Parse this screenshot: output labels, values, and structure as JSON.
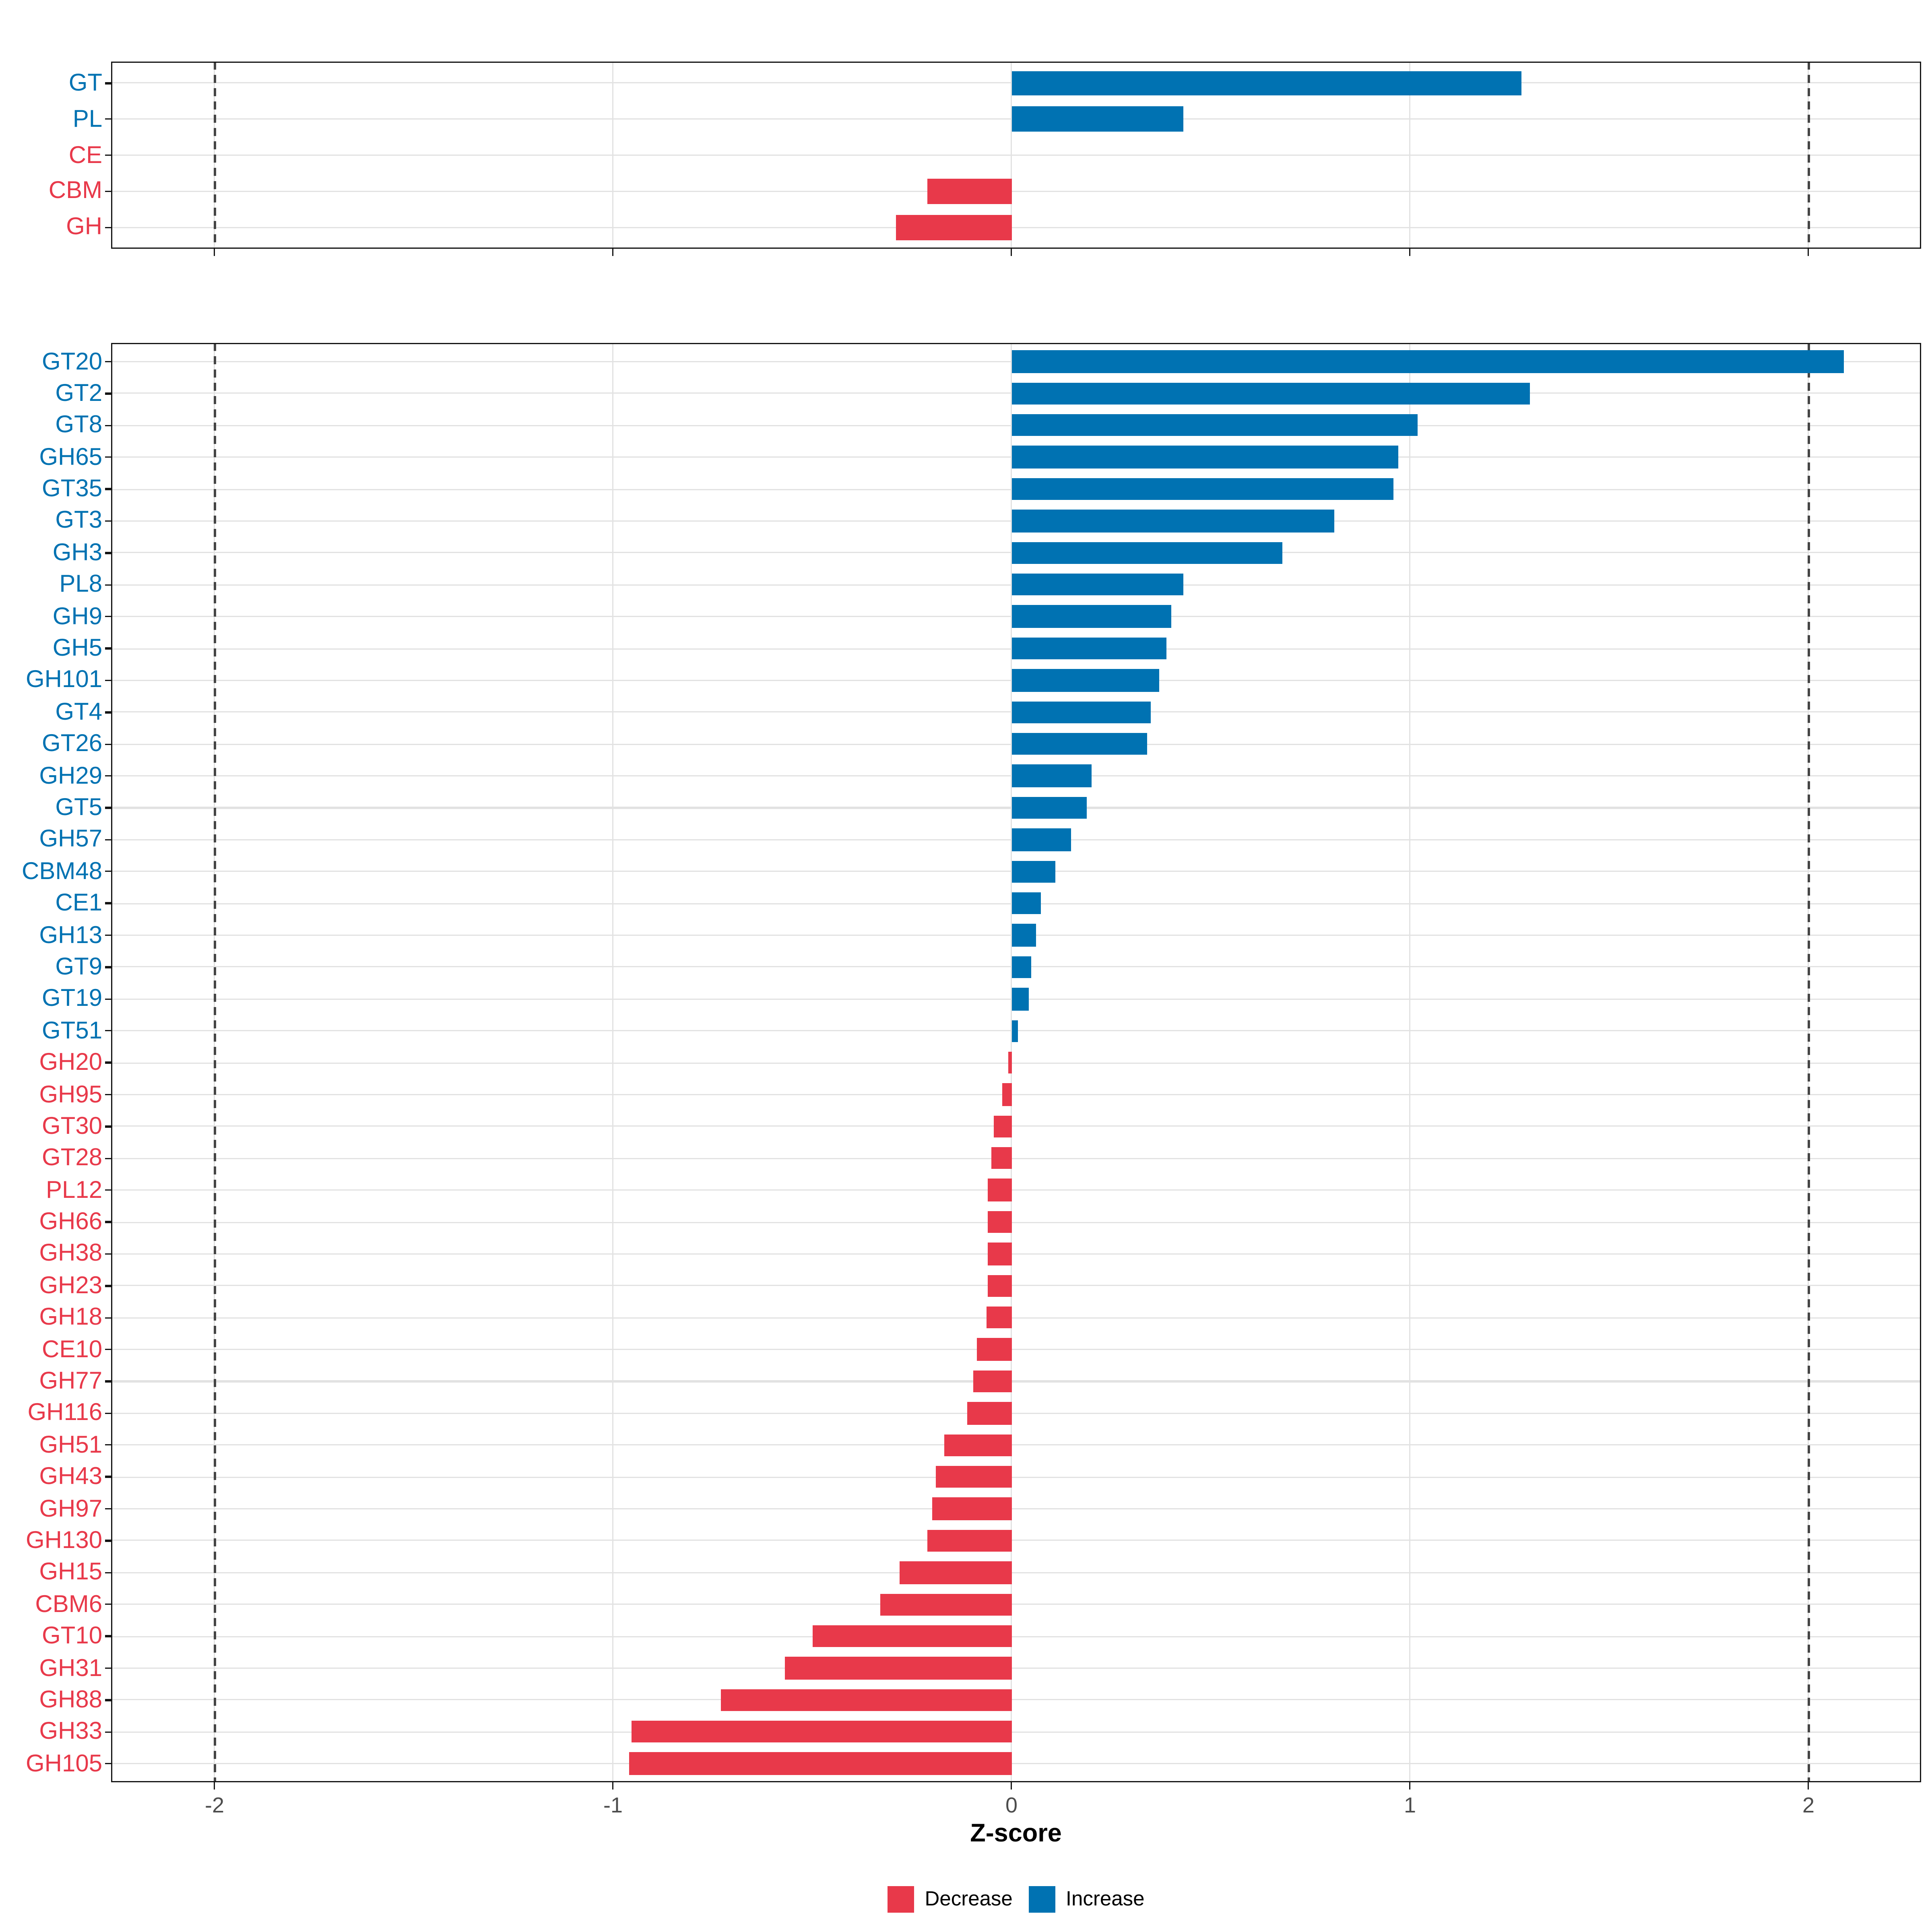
{
  "axis": {
    "xlabel": "Z-score",
    "tick_labels": [
      "-2",
      "-1",
      "0",
      "1",
      "2"
    ],
    "tick_values": [
      -2,
      -1,
      0,
      1,
      2
    ],
    "dashed_reference_lines": [
      -2,
      2
    ],
    "xlim": [
      -2.26,
      2.28
    ]
  },
  "legend": {
    "items": [
      {
        "label": "Decrease",
        "color": "#E8394A"
      },
      {
        "label": "Increase",
        "color": "#0072B2"
      }
    ]
  },
  "colors": {
    "increase": "#0072B2",
    "decrease": "#E8394A",
    "grid": "#E2E2E2",
    "dashed_line": "#454545",
    "axis_text": "#4D4D4D",
    "panel_border": "#141414"
  },
  "chart_data": [
    {
      "type": "bar",
      "orientation": "horizontal",
      "panel": "top",
      "title": "",
      "xlabel": "Z-score",
      "ylabel": "",
      "xlim": [
        -2.26,
        2.28
      ],
      "grid": true,
      "categories": [
        "GT",
        "PL",
        "CE",
        "CBM",
        "GH"
      ],
      "values": [
        1.28,
        0.43,
        0,
        -0.21,
        -0.29
      ],
      "directions": [
        "increase",
        "increase",
        "decrease",
        "decrease",
        "decrease"
      ]
    },
    {
      "type": "bar",
      "orientation": "horizontal",
      "panel": "bottom",
      "title": "",
      "xlabel": "Z-score",
      "ylabel": "",
      "xlim": [
        -2.26,
        2.28
      ],
      "grid": true,
      "categories": [
        "GT20",
        "GT2",
        "GT8",
        "GH65",
        "GT35",
        "GT3",
        "GH3",
        "PL8",
        "GH9",
        "GH5",
        "GH101",
        "GT4",
        "GT26",
        "GH29",
        "GT5",
        "GH57",
        "CBM48",
        "CE1",
        "GH13",
        "GT9",
        "GT19",
        "GT51",
        "GH20",
        "GH95",
        "GT30",
        "GT28",
        "PL12",
        "GH66",
        "GH38",
        "GH23",
        "GH18",
        "CE10",
        "GH77",
        "GH116",
        "GH51",
        "GH43",
        "GH97",
        "GH130",
        "GH15",
        "CBM6",
        "GT10",
        "GH31",
        "GH88",
        "GH33",
        "GH105"
      ],
      "values": [
        2.09,
        1.3,
        1.02,
        0.97,
        0.96,
        0.81,
        0.68,
        0.43,
        0.4,
        0.39,
        0.37,
        0.35,
        0.34,
        0.2,
        0.19,
        0.15,
        0.11,
        0.075,
        0.063,
        0.049,
        0.044,
        0.015,
        -0.008,
        -0.022,
        -0.044,
        -0.052,
        -0.06,
        -0.06,
        -0.06,
        -0.06,
        -0.062,
        -0.087,
        -0.097,
        -0.11,
        -0.17,
        -0.19,
        -0.2,
        -0.21,
        -0.28,
        -0.33,
        -0.5,
        -0.57,
        -0.73,
        -0.955,
        -0.96
      ],
      "directions": [
        "increase",
        "increase",
        "increase",
        "increase",
        "increase",
        "increase",
        "increase",
        "increase",
        "increase",
        "increase",
        "increase",
        "increase",
        "increase",
        "increase",
        "increase",
        "increase",
        "increase",
        "increase",
        "increase",
        "increase",
        "increase",
        "increase",
        "decrease",
        "decrease",
        "decrease",
        "decrease",
        "decrease",
        "decrease",
        "decrease",
        "decrease",
        "decrease",
        "decrease",
        "decrease",
        "decrease",
        "decrease",
        "decrease",
        "decrease",
        "decrease",
        "decrease",
        "decrease",
        "decrease",
        "decrease",
        "decrease",
        "decrease",
        "decrease"
      ]
    }
  ]
}
